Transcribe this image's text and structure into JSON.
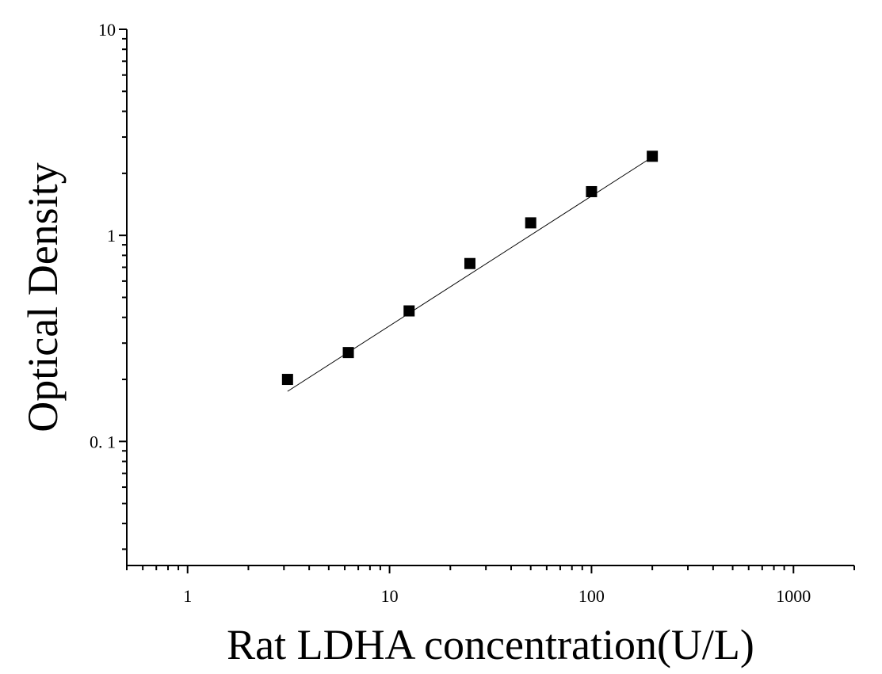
{
  "chart_data": {
    "type": "scatter",
    "title": "",
    "xlabel": "Rat LDHA concentration(U/L)",
    "ylabel": "Optical Density",
    "xscale": "log",
    "yscale": "log",
    "xlim": [
      0.5,
      2000
    ],
    "ylim": [
      0.025,
      10
    ],
    "xticks": [
      1,
      10,
      100,
      1000
    ],
    "xtick_labels": [
      "1",
      "10",
      "100",
      "1000"
    ],
    "yticks": [
      0.1,
      1,
      10
    ],
    "ytick_labels": [
      "0. 1",
      "1",
      "10"
    ],
    "grid": false,
    "legend": "none",
    "series": [
      {
        "marker": "square",
        "color": "#000000",
        "x": [
          3.125,
          6.25,
          12.5,
          25,
          50,
          100,
          200
        ],
        "y": [
          0.2,
          0.27,
          0.43,
          0.73,
          1.15,
          1.63,
          2.42
        ]
      }
    ],
    "fit_line": {
      "color": "#000000",
      "x": [
        3.125,
        200
      ],
      "y": [
        0.175,
        2.4
      ]
    }
  }
}
